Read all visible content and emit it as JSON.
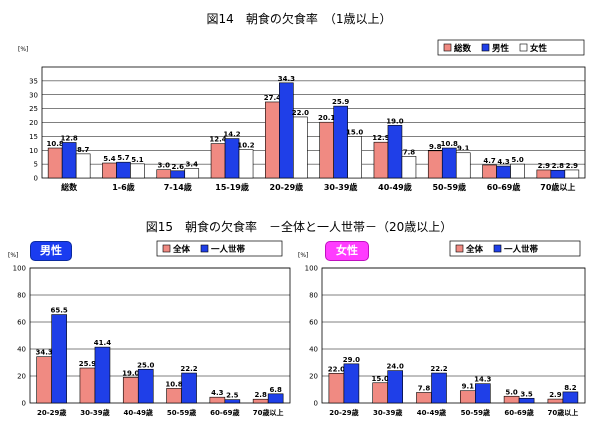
{
  "colors": {
    "total": "#f08a82",
    "male": "#1f3fe8",
    "female": "#ffffff"
  },
  "chart_data": [
    {
      "type": "bar",
      "title": "図14　朝食の欠食率　（1歳以上）",
      "unit": "[%]",
      "ylim": [
        0,
        40
      ],
      "yticks": [
        0,
        5,
        10,
        15,
        20,
        25,
        30,
        35
      ],
      "grid": true,
      "legend": "top-right",
      "categories": [
        "総数",
        "1-6歳",
        "7-14歳",
        "15-19歳",
        "20-29歳",
        "30-39歳",
        "40-49歳",
        "50-59歳",
        "60-69歳",
        "70歳以上"
      ],
      "series": [
        {
          "name": "総数",
          "color": "#f08a82",
          "values": [
            10.8,
            5.4,
            3.0,
            12.4,
            27.4,
            20.1,
            12.9,
            9.8,
            4.7,
            2.9
          ]
        },
        {
          "name": "男性",
          "color": "#1f3fe8",
          "values": [
            12.8,
            5.7,
            2.6,
            14.2,
            34.3,
            25.9,
            19.0,
            10.8,
            4.3,
            2.8
          ]
        },
        {
          "name": "女性",
          "color": "#ffffff",
          "values": [
            8.7,
            5.1,
            3.4,
            10.2,
            22.0,
            15.0,
            7.8,
            9.1,
            5.0,
            2.9
          ]
        }
      ]
    },
    {
      "type": "bar",
      "title": "図15　朝食の欠食率　－全体と一人世帯－（20歳以上）",
      "panel_label": "男性",
      "unit": "[%]",
      "ylim": [
        0,
        100
      ],
      "yticks": [
        0,
        20,
        40,
        60,
        80,
        100
      ],
      "grid": true,
      "legend": "top-right",
      "categories": [
        "20-29歳",
        "30-39歳",
        "40-49歳",
        "50-59歳",
        "60-69歳",
        "70歳以上"
      ],
      "series": [
        {
          "name": "全体",
          "color": "#f08a82",
          "values": [
            34.3,
            25.9,
            19.0,
            10.8,
            4.3,
            2.8
          ]
        },
        {
          "name": "一人世帯",
          "color": "#1f3fe8",
          "values": [
            65.5,
            41.4,
            25.0,
            22.2,
            2.5,
            6.8
          ]
        }
      ]
    },
    {
      "type": "bar",
      "panel_label": "女性",
      "unit": "[%]",
      "ylim": [
        0,
        100
      ],
      "yticks": [
        0,
        20,
        40,
        60,
        80,
        100
      ],
      "grid": true,
      "legend": "top-right",
      "categories": [
        "20-29歳",
        "30-39歳",
        "40-49歳",
        "50-59歳",
        "60-69歳",
        "70歳以上"
      ],
      "series": [
        {
          "name": "全体",
          "color": "#f08a82",
          "values": [
            22.0,
            15.0,
            7.8,
            9.1,
            5.0,
            2.9
          ]
        },
        {
          "name": "一人世帯",
          "color": "#1f3fe8",
          "values": [
            29.0,
            24.0,
            22.2,
            14.3,
            3.5,
            8.2
          ]
        }
      ]
    }
  ]
}
